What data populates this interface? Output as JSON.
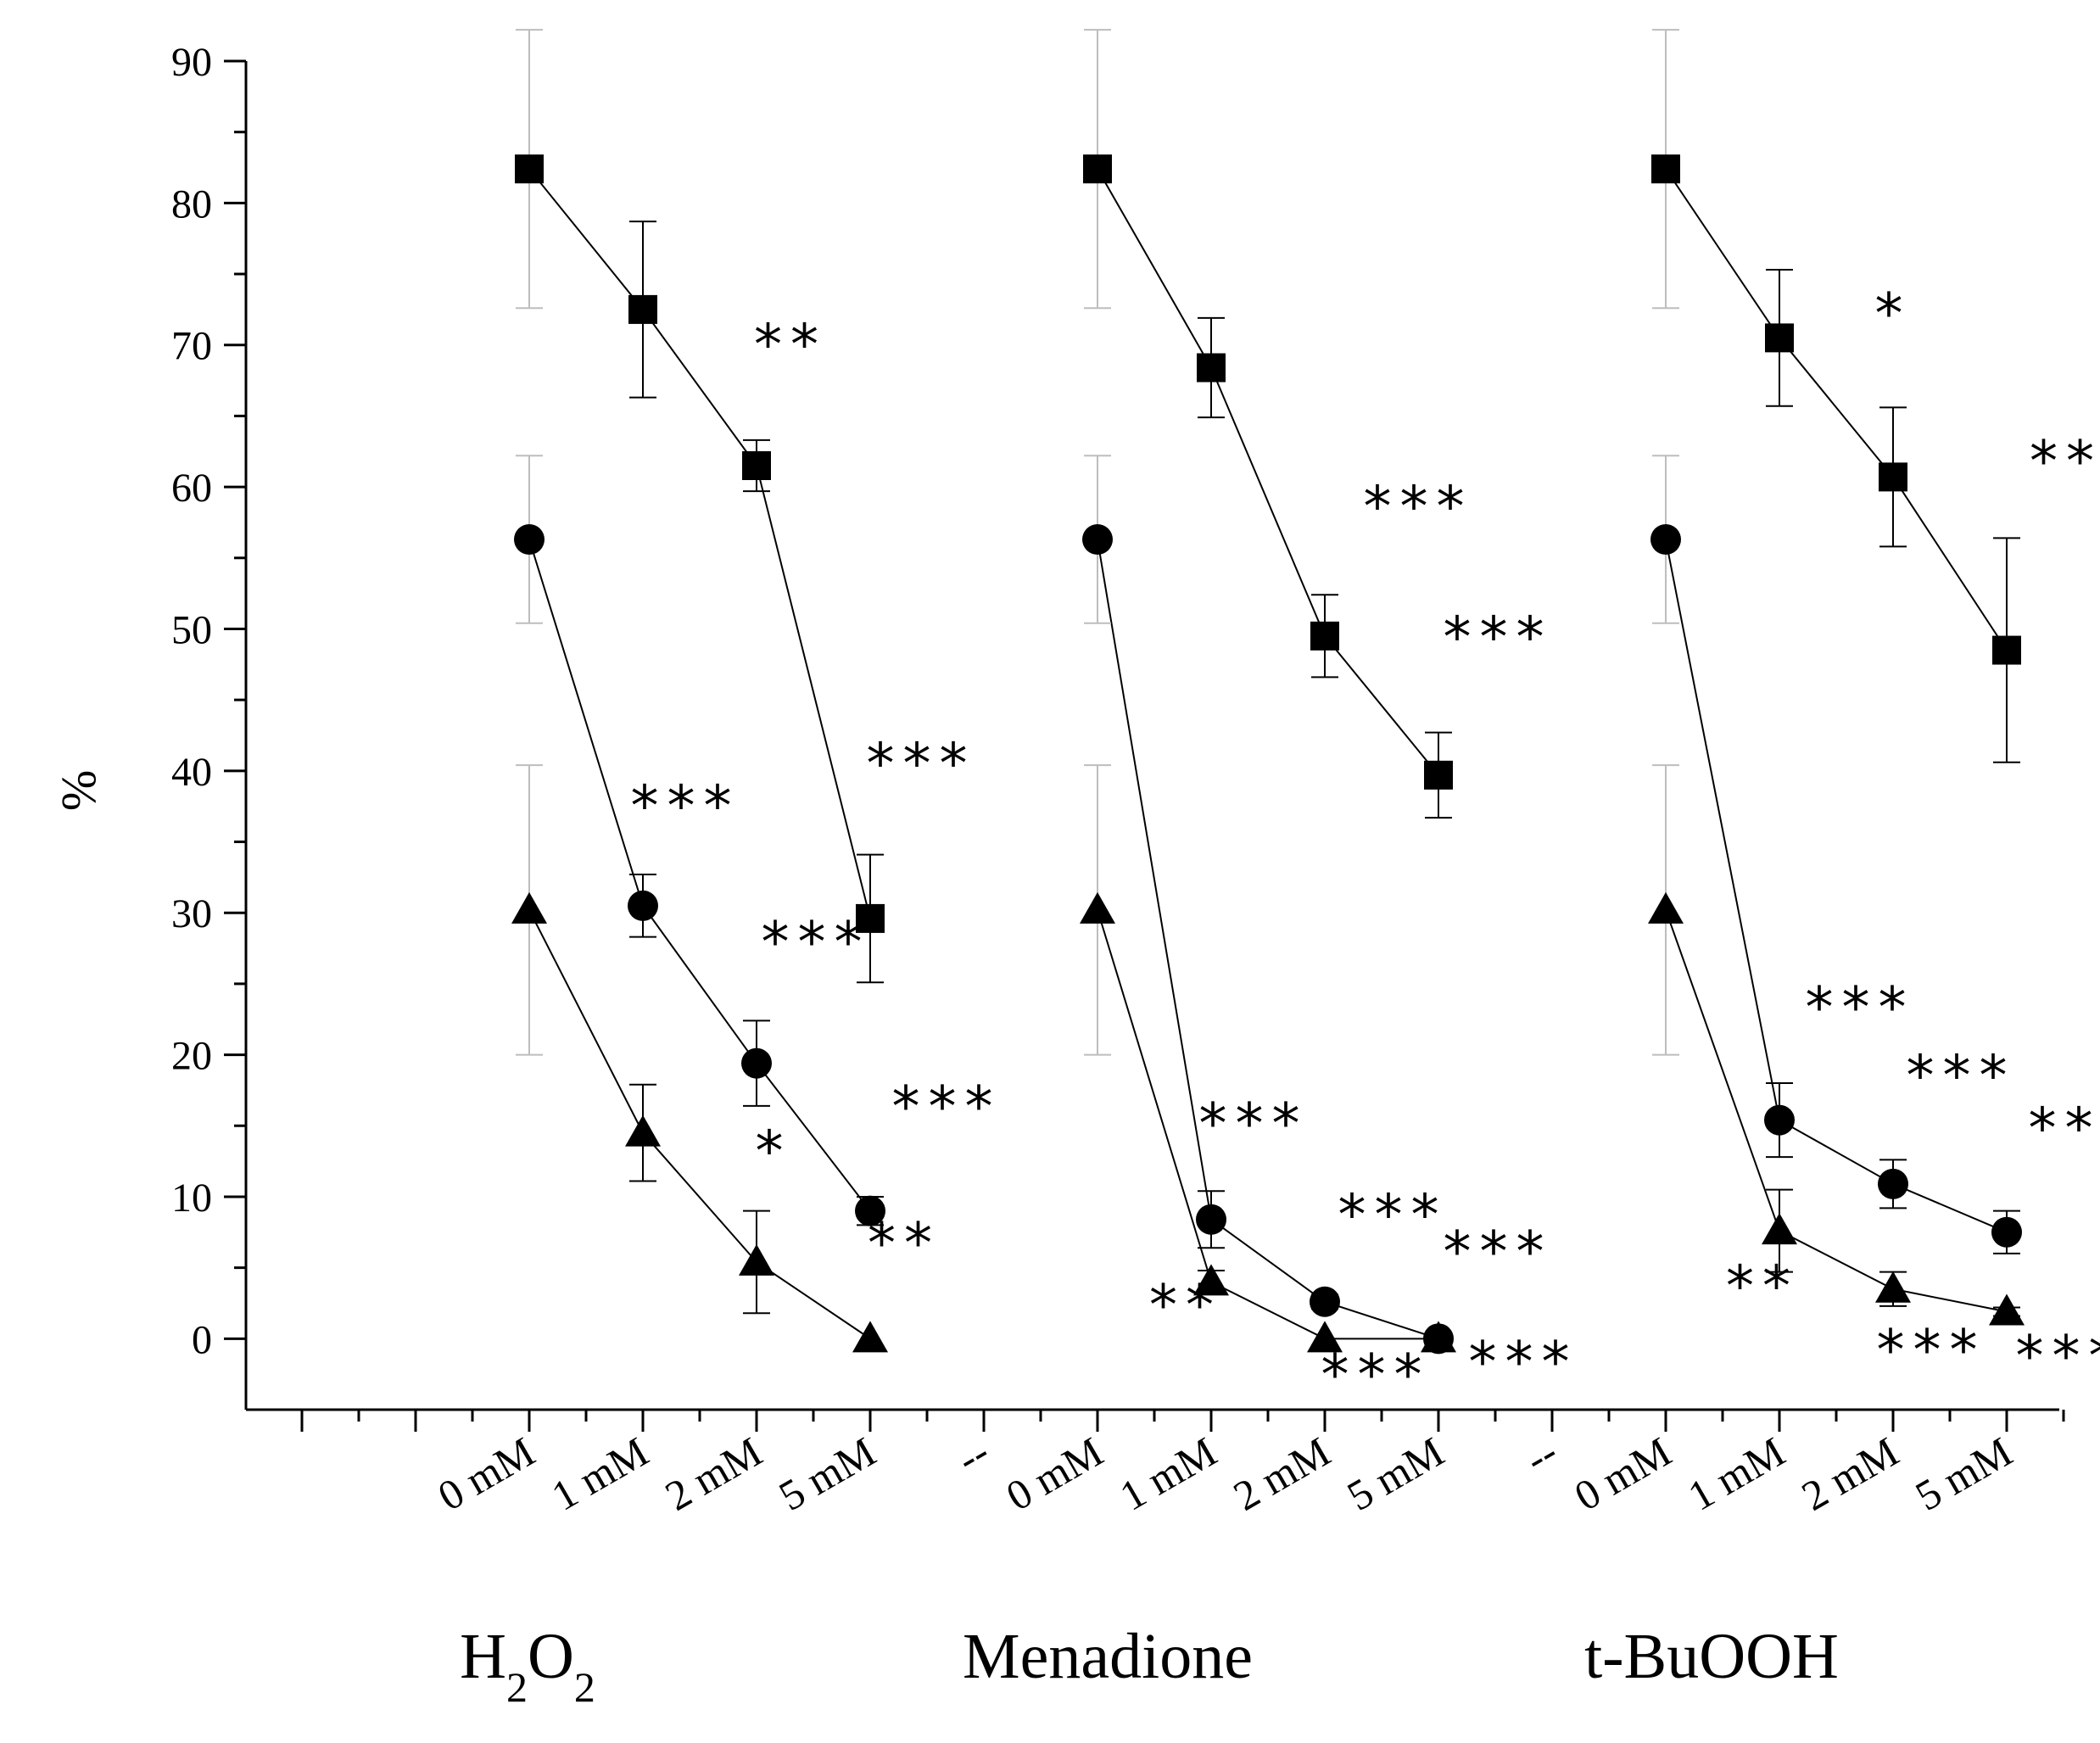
{
  "chart_data": {
    "type": "scatter",
    "title": "",
    "xlabel": "",
    "ylabel": "%",
    "ylim": [
      -5,
      90
    ],
    "yticks": [
      0,
      10,
      20,
      30,
      40,
      50,
      60,
      70,
      80,
      90
    ],
    "tick_labels": [
      "0 mM",
      "1 mM",
      "2 mM",
      "5 mM",
      "--",
      "0 mM",
      "1 mM",
      "2 mM",
      "5 mM",
      "--",
      "0 mM",
      "1 mM",
      "2 mM",
      "5 mM"
    ],
    "groups": [
      {
        "label": "H2O2",
        "label_main": "H",
        "sub1": "2",
        "mid": "O",
        "sub2": "2"
      },
      {
        "label": "Menadione"
      },
      {
        "label": "t-BuOOH"
      }
    ],
    "series": [
      {
        "name": "square",
        "marker": "square",
        "points": [
          {
            "group": 0,
            "dose": 0,
            "y": 82.4,
            "err": 9.8,
            "sig": ""
          },
          {
            "group": 0,
            "dose": 1,
            "y": 72.5,
            "err": 6.2,
            "sig": ""
          },
          {
            "group": 0,
            "dose": 2,
            "y": 61.5,
            "err": 1.8,
            "sig": "**"
          },
          {
            "group": 0,
            "dose": 3,
            "y": 29.6,
            "err": 4.5,
            "sig": "***"
          },
          {
            "group": 1,
            "dose": 0,
            "y": 82.4,
            "err": 9.8,
            "sig": ""
          },
          {
            "group": 1,
            "dose": 1,
            "y": 68.4,
            "err": 3.5,
            "sig": ""
          },
          {
            "group": 1,
            "dose": 2,
            "y": 49.5,
            "err": 2.9,
            "sig": "***"
          },
          {
            "group": 1,
            "dose": 3,
            "y": 39.7,
            "err": 3.0,
            "sig": "***"
          },
          {
            "group": 2,
            "dose": 0,
            "y": 82.4,
            "err": 9.8,
            "sig": ""
          },
          {
            "group": 2,
            "dose": 1,
            "y": 70.5,
            "err": 4.8,
            "sig": ""
          },
          {
            "group": 2,
            "dose": 2,
            "y": 60.7,
            "err": 4.9,
            "sig": "*"
          },
          {
            "group": 2,
            "dose": 3,
            "y": 48.5,
            "err": 7.9,
            "sig": "**"
          }
        ]
      },
      {
        "name": "circle",
        "marker": "circle",
        "points": [
          {
            "group": 0,
            "dose": 0,
            "y": 56.3,
            "err": 5.9,
            "sig": ""
          },
          {
            "group": 0,
            "dose": 1,
            "y": 30.5,
            "err": 2.2,
            "sig": "***"
          },
          {
            "group": 0,
            "dose": 2,
            "y": 19.4,
            "err": 3.0,
            "sig": "***"
          },
          {
            "group": 0,
            "dose": 3,
            "y": 9.0,
            "err": 1.0,
            "sig": "***"
          },
          {
            "group": 1,
            "dose": 0,
            "y": 56.3,
            "err": 5.9,
            "sig": ""
          },
          {
            "group": 1,
            "dose": 1,
            "y": 8.4,
            "err": 2.0,
            "sig": "***"
          },
          {
            "group": 1,
            "dose": 2,
            "y": 2.6,
            "err": 0.5,
            "sig": "***"
          },
          {
            "group": 1,
            "dose": 3,
            "y": 0.0,
            "err": 0.3,
            "sig": "***"
          },
          {
            "group": 2,
            "dose": 0,
            "y": 56.3,
            "err": 5.9,
            "sig": ""
          },
          {
            "group": 2,
            "dose": 1,
            "y": 15.4,
            "err": 2.6,
            "sig": "***"
          },
          {
            "group": 2,
            "dose": 2,
            "y": 10.9,
            "err": 1.7,
            "sig": "***"
          },
          {
            "group": 2,
            "dose": 3,
            "y": 7.5,
            "err": 1.5,
            "sig": "***"
          }
        ]
      },
      {
        "name": "triangle",
        "marker": "triangle",
        "points": [
          {
            "group": 0,
            "dose": 0,
            "y": 30.2,
            "err": 10.2,
            "sig": ""
          },
          {
            "group": 0,
            "dose": 1,
            "y": 14.5,
            "err": 3.4,
            "sig": ""
          },
          {
            "group": 0,
            "dose": 2,
            "y": 5.4,
            "err": 3.6,
            "sig": "*"
          },
          {
            "group": 0,
            "dose": 3,
            "y": 0.0,
            "err": 0.0,
            "sig": "**"
          },
          {
            "group": 1,
            "dose": 0,
            "y": 30.2,
            "err": 10.2,
            "sig": ""
          },
          {
            "group": 1,
            "dose": 1,
            "y": 4.0,
            "err": 0.8,
            "sig": "**"
          },
          {
            "group": 1,
            "dose": 2,
            "y": 0.0,
            "err": 0.0,
            "sig": "***"
          },
          {
            "group": 1,
            "dose": 3,
            "y": 0.0,
            "err": 0.0,
            "sig": "***"
          },
          {
            "group": 2,
            "dose": 0,
            "y": 30.2,
            "err": 10.2,
            "sig": ""
          },
          {
            "group": 2,
            "dose": 1,
            "y": 7.6,
            "err": 2.9,
            "sig": "**"
          },
          {
            "group": 2,
            "dose": 2,
            "y": 3.5,
            "err": 1.2,
            "sig": "***"
          },
          {
            "group": 2,
            "dose": 3,
            "y": 1.9,
            "err": 0.3,
            "sig": "***"
          }
        ]
      }
    ]
  }
}
